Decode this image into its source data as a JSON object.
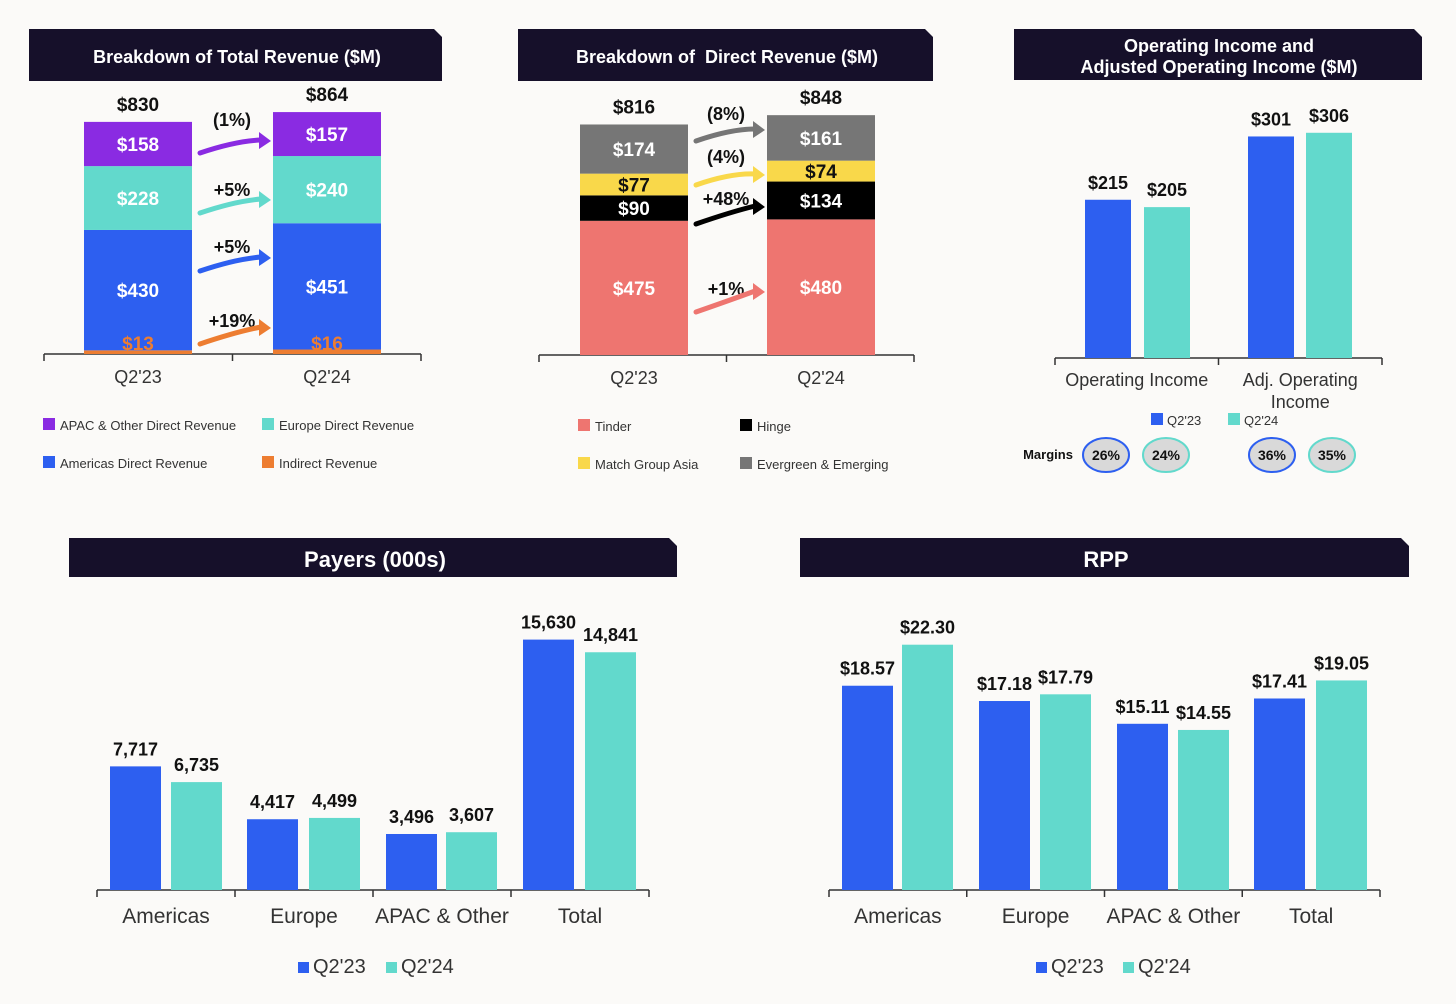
{
  "palette": {
    "header_bg": "#16102a",
    "q23": "#2d5ff0",
    "q24": "#62d9cc",
    "apac": "#8a2be2",
    "europe": "#62d9cc",
    "americas": "#2d5ff0",
    "indirect": "#ed7d31",
    "tinder": "#ee7570",
    "hinge": "#000000",
    "mga": "#f9d84a",
    "evergreen": "#767676",
    "axis": "#333333",
    "label": "#111111"
  },
  "panels": {
    "total_revenue": {
      "title": "Breakdown of Total Revenue ($M)"
    },
    "direct_revenue": {
      "title": "Breakdown of  Direct Revenue ($M)"
    },
    "operating_income": {
      "title_line1": "Operating Income and",
      "title_line2": "Adjusted Operating Income ($M)",
      "margins_label": "Margins"
    },
    "payers": {
      "title": "Payers (000s)"
    },
    "rpp": {
      "title": "RPP"
    }
  },
  "chart_data": [
    {
      "id": "total_revenue",
      "type": "bar",
      "stacked": true,
      "categories": [
        "Q2'23",
        "Q2'24"
      ],
      "totals": [
        830,
        864
      ],
      "total_labels": [
        "$830",
        "$864"
      ],
      "series": [
        {
          "name": "Indirect Revenue",
          "color_key": "indirect",
          "values": [
            13,
            16
          ],
          "labels": [
            "$13",
            "$16"
          ],
          "change": "+19%"
        },
        {
          "name": "Americas Direct Revenue",
          "color_key": "americas",
          "values": [
            430,
            451
          ],
          "labels": [
            "$430",
            "$451"
          ],
          "change": "+5%"
        },
        {
          "name": "Europe Direct Revenue",
          "color_key": "europe",
          "values": [
            228,
            240
          ],
          "labels": [
            "$228",
            "$240"
          ],
          "change": "+5%"
        },
        {
          "name": "APAC & Other Direct Revenue",
          "color_key": "apac",
          "values": [
            158,
            157
          ],
          "labels": [
            "$158",
            "$157"
          ],
          "change": "(1%)"
        }
      ],
      "legend": [
        "APAC & Other Direct Revenue",
        "Europe Direct Revenue",
        "Americas Direct Revenue",
        "Indirect Revenue"
      ]
    },
    {
      "id": "direct_revenue",
      "type": "bar",
      "stacked": true,
      "categories": [
        "Q2'23",
        "Q2'24"
      ],
      "totals": [
        816,
        848
      ],
      "total_labels": [
        "$816",
        "$848"
      ],
      "series": [
        {
          "name": "Tinder",
          "color_key": "tinder",
          "values": [
            475,
            480
          ],
          "labels": [
            "$475",
            "$480"
          ],
          "change": "+1%"
        },
        {
          "name": "Hinge",
          "color_key": "hinge",
          "values": [
            90,
            134
          ],
          "labels": [
            "$90",
            "$134"
          ],
          "change": "+48%"
        },
        {
          "name": "Match Group Asia",
          "color_key": "mga",
          "values": [
            77,
            74
          ],
          "labels": [
            "$77",
            "$74"
          ],
          "change": "(4%)"
        },
        {
          "name": "Evergreen & Emerging",
          "color_key": "evergreen",
          "values": [
            174,
            161
          ],
          "labels": [
            "$174",
            "$161"
          ],
          "change": "(8%)"
        }
      ],
      "legend": [
        "Tinder",
        "Hinge",
        "Match Group Asia",
        "Evergreen & Emerging"
      ]
    },
    {
      "id": "operating_income",
      "type": "bar",
      "categories": [
        "Operating Income",
        "Adj. Operating Income"
      ],
      "series": [
        {
          "name": "Q2'23",
          "color_key": "q23",
          "values": [
            215,
            301
          ],
          "labels": [
            "$215",
            "$301"
          ]
        },
        {
          "name": "Q2'24",
          "color_key": "q24",
          "values": [
            205,
            306
          ],
          "labels": [
            "$205",
            "$306"
          ]
        }
      ],
      "margins": [
        "26%",
        "24%",
        "36%",
        "35%"
      ],
      "legend": [
        "Q2'23",
        "Q2'24"
      ]
    },
    {
      "id": "payers",
      "type": "bar",
      "categories": [
        "Americas",
        "Europe",
        "APAC & Other",
        "Total"
      ],
      "series": [
        {
          "name": "Q2'23",
          "color_key": "q23",
          "values": [
            7717,
            4417,
            3496,
            15630
          ],
          "labels": [
            "7,717",
            "4,417",
            "3,496",
            "15,630"
          ]
        },
        {
          "name": "Q2'24",
          "color_key": "q24",
          "values": [
            6735,
            4499,
            3607,
            14841
          ],
          "labels": [
            "6,735",
            "4,499",
            "3,607",
            "14,841"
          ]
        }
      ],
      "legend": [
        "Q2'23",
        "Q2'24"
      ]
    },
    {
      "id": "rpp",
      "type": "bar",
      "categories": [
        "Americas",
        "Europe",
        "APAC & Other",
        "Total"
      ],
      "series": [
        {
          "name": "Q2'23",
          "color_key": "q23",
          "values": [
            18.57,
            17.18,
            15.11,
            17.41
          ],
          "labels": [
            "$18.57",
            "$17.18",
            "$15.11",
            "$17.41"
          ]
        },
        {
          "name": "Q2'24",
          "color_key": "q24",
          "values": [
            22.3,
            17.79,
            14.55,
            19.05
          ],
          "labels": [
            "$22.30",
            "$17.79",
            "$14.55",
            "$19.05"
          ]
        }
      ],
      "legend": [
        "Q2'23",
        "Q2'24"
      ]
    }
  ]
}
